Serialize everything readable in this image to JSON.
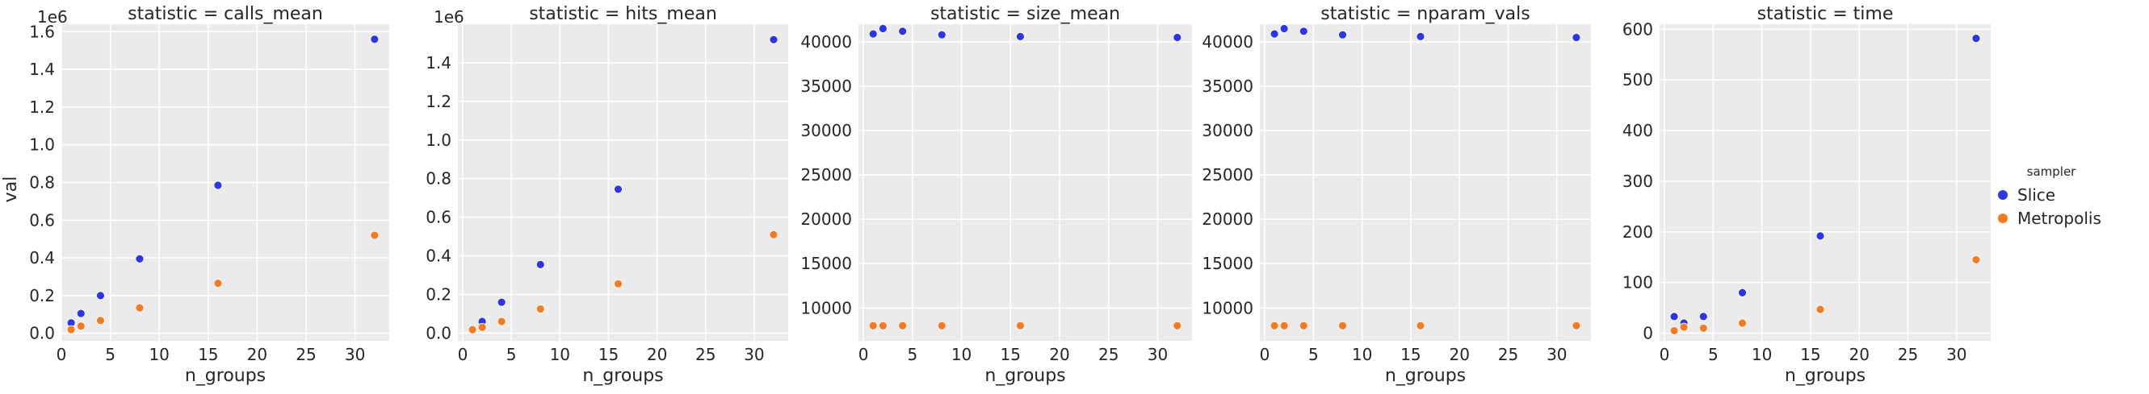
{
  "figure": {
    "shared_xlabel": "n_groups",
    "shared_ylabel": "val",
    "legend": {
      "title": "sampler",
      "placement": "right",
      "entries": [
        {
          "name": "Slice",
          "color": "#2a36e8"
        },
        {
          "name": "Metropolis",
          "color": "#f47b20"
        }
      ]
    },
    "background": "#ebebeb",
    "grid": true
  },
  "chart_data": [
    {
      "type": "scatter",
      "title": "statistic = calls_mean",
      "xlabel": "n_groups",
      "ylabel": "val",
      "offset_label": "1e6",
      "xlim": [
        0,
        33.5
      ],
      "ylim": [
        -40000,
        1640000
      ],
      "xticks": [
        0,
        5,
        10,
        15,
        20,
        25,
        30
      ],
      "yticks": [
        0,
        200000,
        400000,
        600000,
        800000,
        1000000,
        1200000,
        1400000,
        1600000
      ],
      "ytick_labels": [
        "0.0",
        "0.2",
        "0.4",
        "0.6",
        "0.8",
        "1.0",
        "1.2",
        "1.4",
        "1.6"
      ],
      "x": [
        1,
        2,
        4,
        8,
        16,
        32
      ],
      "series": [
        {
          "name": "Slice",
          "values": [
            55000,
            105000,
            200000,
            395000,
            785000,
            1560000
          ]
        },
        {
          "name": "Metropolis",
          "values": [
            20000,
            38000,
            68000,
            135000,
            265000,
            520000
          ]
        }
      ]
    },
    {
      "type": "scatter",
      "title": "statistic = hits_mean",
      "xlabel": "n_groups",
      "ylabel": "",
      "offset_label": "1e6",
      "xlim": [
        -0.5,
        33.5
      ],
      "ylim": [
        -40000,
        1600000
      ],
      "xticks": [
        0,
        5,
        10,
        15,
        20,
        25,
        30
      ],
      "yticks": [
        0,
        200000,
        400000,
        600000,
        800000,
        1000000,
        1200000,
        1400000
      ],
      "ytick_labels": [
        "0.0",
        "0.2",
        "0.4",
        "0.6",
        "0.8",
        "1.0",
        "1.2",
        "1.4"
      ],
      "x": [
        1,
        2,
        4,
        8,
        16,
        32
      ],
      "series": [
        {
          "name": "Slice",
          "values": [
            18000,
            60000,
            160000,
            355000,
            745000,
            1520000
          ]
        },
        {
          "name": "Metropolis",
          "values": [
            18000,
            30000,
            60000,
            125000,
            255000,
            510000
          ]
        }
      ]
    },
    {
      "type": "scatter",
      "title": "statistic = size_mean",
      "xlabel": "n_groups",
      "ylabel": "",
      "xlim": [
        -0.5,
        33.5
      ],
      "ylim": [
        6300,
        42000
      ],
      "xticks": [
        0,
        5,
        10,
        15,
        20,
        25,
        30
      ],
      "yticks": [
        10000,
        15000,
        20000,
        25000,
        30000,
        35000,
        40000
      ],
      "ytick_labels": [
        "10000",
        "15000",
        "20000",
        "25000",
        "30000",
        "35000",
        "40000"
      ],
      "x": [
        1,
        2,
        4,
        8,
        16,
        32
      ],
      "series": [
        {
          "name": "Slice",
          "values": [
            40900,
            41500,
            41200,
            40800,
            40600,
            40500
          ]
        },
        {
          "name": "Metropolis",
          "values": [
            8000,
            8000,
            8000,
            8000,
            8000,
            8000
          ]
        }
      ]
    },
    {
      "type": "scatter",
      "title": "statistic = nparam_vals",
      "xlabel": "n_groups",
      "ylabel": "",
      "xlim": [
        -0.5,
        33.5
      ],
      "ylim": [
        6300,
        42000
      ],
      "xticks": [
        0,
        5,
        10,
        15,
        20,
        25,
        30
      ],
      "yticks": [
        10000,
        15000,
        20000,
        25000,
        30000,
        35000,
        40000
      ],
      "ytick_labels": [
        "10000",
        "15000",
        "20000",
        "25000",
        "30000",
        "35000",
        "40000"
      ],
      "x": [
        1,
        2,
        4,
        8,
        16,
        32
      ],
      "series": [
        {
          "name": "Slice",
          "values": [
            40900,
            41500,
            41200,
            40800,
            40600,
            40500
          ]
        },
        {
          "name": "Metropolis",
          "values": [
            8000,
            8000,
            8000,
            8000,
            8000,
            8000
          ]
        }
      ]
    },
    {
      "type": "scatter",
      "title": "statistic = time",
      "xlabel": "n_groups",
      "ylabel": "",
      "xlim": [
        -0.5,
        33.5
      ],
      "ylim": [
        -15,
        610
      ],
      "xticks": [
        0,
        5,
        10,
        15,
        20,
        25,
        30
      ],
      "yticks": [
        0,
        100,
        200,
        300,
        400,
        500,
        600
      ],
      "ytick_labels": [
        "0",
        "100",
        "200",
        "300",
        "400",
        "500",
        "600"
      ],
      "x": [
        1,
        2,
        4,
        8,
        16,
        32
      ],
      "series": [
        {
          "name": "Slice",
          "values": [
            33,
            20,
            33,
            80,
            192,
            582
          ]
        },
        {
          "name": "Metropolis",
          "values": [
            5,
            12,
            10,
            20,
            47,
            145
          ]
        }
      ]
    }
  ]
}
